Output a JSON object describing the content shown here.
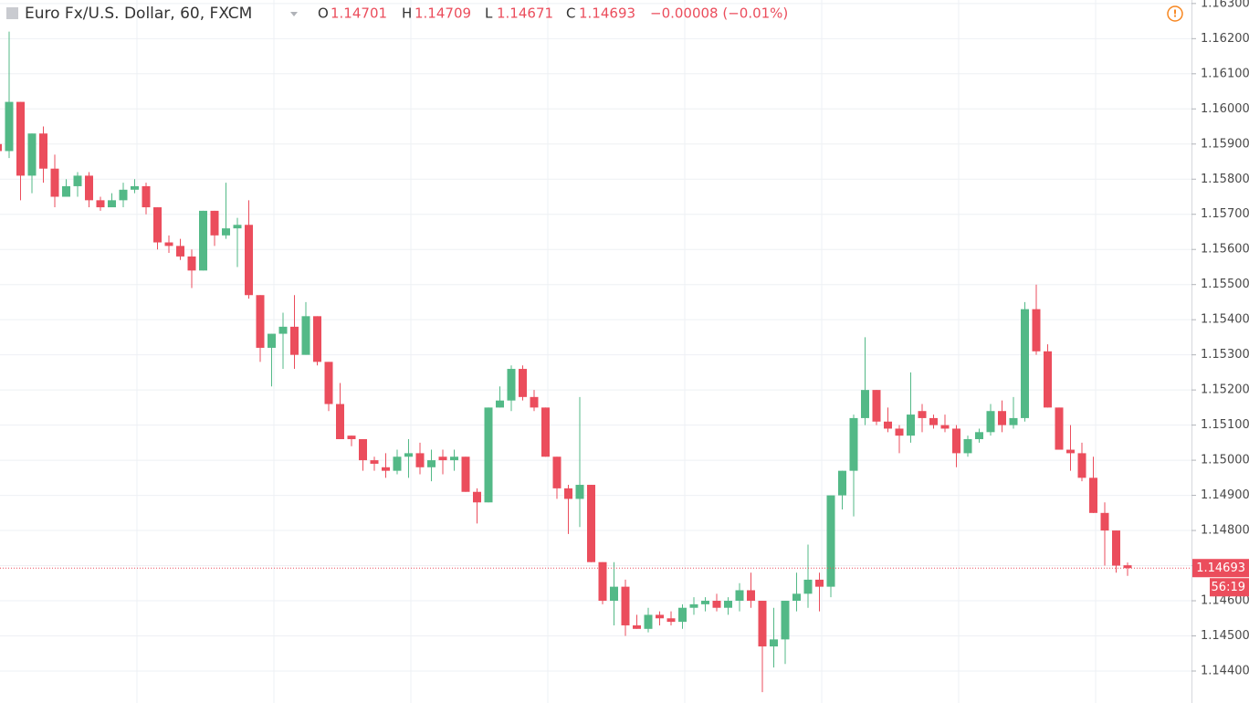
{
  "chart_data": {
    "type": "candlestick",
    "title": "Euro Fx/U.S. Dollar, 60, FXCM",
    "ohlc_legend": [
      {
        "label": "O",
        "value": "1.14701"
      },
      {
        "label": "H",
        "value": "1.14709"
      },
      {
        "label": "L",
        "value": "1.14671"
      },
      {
        "label": "C",
        "value": "1.14693"
      }
    ],
    "change": "−0.00008 (−0.01%)",
    "up_color": "#53b987",
    "down_color": "#eb4d5c",
    "ylim": [
      1.14309,
      1.1631
    ],
    "yticks": [
      {
        "value": 1.163,
        "label": "1.16300"
      },
      {
        "value": 1.162,
        "label": "1.16200"
      },
      {
        "value": 1.161,
        "label": "1.16100"
      },
      {
        "value": 1.16,
        "label": "1.16000"
      },
      {
        "value": 1.159,
        "label": "1.15900"
      },
      {
        "value": 1.158,
        "label": "1.15800"
      },
      {
        "value": 1.157,
        "label": "1.15700"
      },
      {
        "value": 1.156,
        "label": "1.15600"
      },
      {
        "value": 1.155,
        "label": "1.15500"
      },
      {
        "value": 1.154,
        "label": "1.15400"
      },
      {
        "value": 1.153,
        "label": "1.15300"
      },
      {
        "value": 1.152,
        "label": "1.15200"
      },
      {
        "value": 1.151,
        "label": "1.15100"
      },
      {
        "value": 1.15,
        "label": "1.15000"
      },
      {
        "value": 1.149,
        "label": "1.14900"
      },
      {
        "value": 1.148,
        "label": "1.14800"
      },
      {
        "value": 1.147,
        "label": "1.14700"
      },
      {
        "value": 1.146,
        "label": "1.14600"
      },
      {
        "value": 1.145,
        "label": "1.14500"
      },
      {
        "value": 1.144,
        "label": "1.14400"
      }
    ],
    "grid": true,
    "last_price": {
      "value": 1.14693,
      "label": "1.14693"
    },
    "countdown": "56:19",
    "open": [
      1.159,
      1.1588,
      1.1602,
      1.1581,
      1.1593,
      1.1583,
      1.1575,
      1.1578,
      1.1581,
      1.1574,
      1.1572,
      1.1574,
      1.1577,
      1.1578,
      1.1572,
      1.1562,
      1.1561,
      1.1558,
      1.1554,
      1.1571,
      1.1564,
      1.1566,
      1.1567,
      1.1547,
      1.1532,
      1.1536,
      1.1538,
      1.153,
      1.1541,
      1.1528,
      1.1516,
      1.1507,
      1.1506,
      1.15,
      1.1498,
      1.1497,
      1.1501,
      1.1502,
      1.1498,
      1.1501,
      1.15,
      1.1501,
      1.1491,
      1.1488,
      1.1515,
      1.1517,
      1.1526,
      1.1518,
      1.1515,
      1.1501,
      1.1492,
      1.1489,
      1.1493,
      1.1471,
      1.146,
      1.1464,
      1.1453,
      1.1452,
      1.1456,
      1.1455,
      1.1454,
      1.1458,
      1.1459,
      1.146,
      1.1458,
      1.146,
      1.1463,
      1.146,
      1.1447,
      1.1449,
      1.146,
      1.1462,
      1.1466,
      1.1464,
      1.149,
      1.1497,
      1.1512,
      1.152,
      1.1511,
      1.1509,
      1.1507,
      1.1514,
      1.1512,
      1.151,
      1.1509,
      1.1502,
      1.1506,
      1.1508,
      1.1514,
      1.151,
      1.1512,
      1.1543,
      1.1531,
      1.1515,
      1.1503,
      1.1502,
      1.1495,
      1.1485,
      1.148,
      1.14701
    ],
    "high": [
      1.1591,
      1.1622,
      1.1602,
      1.1593,
      1.1595,
      1.1587,
      1.158,
      1.1582,
      1.1582,
      1.1575,
      1.1576,
      1.1579,
      1.158,
      1.1579,
      1.1572,
      1.1564,
      1.1563,
      1.156,
      1.1571,
      1.1571,
      1.1579,
      1.1569,
      1.1574,
      1.1547,
      1.1536,
      1.1542,
      1.1547,
      1.1545,
      1.1541,
      1.1528,
      1.1522,
      1.1507,
      1.1506,
      1.1501,
      1.1502,
      1.1503,
      1.1506,
      1.1505,
      1.1503,
      1.1503,
      1.1503,
      1.1501,
      1.1492,
      1.1515,
      1.1521,
      1.1527,
      1.1527,
      1.152,
      1.1515,
      1.1501,
      1.1493,
      1.1518,
      1.1493,
      1.1471,
      1.1471,
      1.1466,
      1.1456,
      1.1458,
      1.1457,
      1.1457,
      1.1459,
      1.1461,
      1.1461,
      1.1462,
      1.1461,
      1.1465,
      1.1468,
      1.146,
      1.1458,
      1.146,
      1.1468,
      1.1476,
      1.1468,
      1.149,
      1.1497,
      1.1513,
      1.1535,
      1.152,
      1.1515,
      1.151,
      1.1525,
      1.1516,
      1.1513,
      1.1513,
      1.151,
      1.1507,
      1.1509,
      1.1516,
      1.1517,
      1.1518,
      1.1545,
      1.155,
      1.1533,
      1.1515,
      1.151,
      1.1505,
      1.1501,
      1.1488,
      1.148,
      1.14709
    ],
    "low": [
      1.1586,
      1.1586,
      1.1574,
      1.1576,
      1.1579,
      1.1572,
      1.1575,
      1.1575,
      1.1572,
      1.1571,
      1.1572,
      1.1572,
      1.1576,
      1.157,
      1.156,
      1.1559,
      1.1557,
      1.1549,
      1.1554,
      1.1561,
      1.1563,
      1.1555,
      1.1546,
      1.1528,
      1.1521,
      1.1526,
      1.1526,
      1.153,
      1.1527,
      1.1514,
      1.1506,
      1.1504,
      1.1497,
      1.1497,
      1.1495,
      1.1496,
      1.1495,
      1.1496,
      1.1494,
      1.1496,
      1.1497,
      1.1491,
      1.1482,
      1.1488,
      1.1515,
      1.1514,
      1.1517,
      1.1514,
      1.1501,
      1.1489,
      1.1479,
      1.1481,
      1.1471,
      1.1459,
      1.1453,
      1.145,
      1.1452,
      1.1451,
      1.1453,
      1.1453,
      1.1452,
      1.1456,
      1.1457,
      1.1457,
      1.1456,
      1.1457,
      1.1458,
      1.1434,
      1.1441,
      1.1442,
      1.1457,
      1.1458,
      1.1457,
      1.1461,
      1.1486,
      1.1484,
      1.151,
      1.151,
      1.1508,
      1.1502,
      1.1505,
      1.1508,
      1.1509,
      1.1508,
      1.1498,
      1.1501,
      1.1505,
      1.1507,
      1.1508,
      1.1509,
      1.1511,
      1.153,
      1.1515,
      1.1503,
      1.1497,
      1.1494,
      1.1485,
      1.147,
      1.1468,
      1.14671
    ],
    "close": [
      1.1588,
      1.1602,
      1.1581,
      1.1593,
      1.1583,
      1.1575,
      1.1578,
      1.1581,
      1.1574,
      1.1572,
      1.1574,
      1.1577,
      1.1578,
      1.1572,
      1.1562,
      1.1561,
      1.1558,
      1.1554,
      1.1571,
      1.1564,
      1.1566,
      1.1567,
      1.1547,
      1.1532,
      1.1536,
      1.1538,
      1.153,
      1.1541,
      1.1528,
      1.1516,
      1.1506,
      1.1506,
      1.15,
      1.1499,
      1.1497,
      1.1501,
      1.1502,
      1.1498,
      1.15,
      1.15,
      1.1501,
      1.1491,
      1.1488,
      1.1515,
      1.1517,
      1.1526,
      1.1518,
      1.1515,
      1.1501,
      1.1492,
      1.1489,
      1.1493,
      1.1471,
      1.146,
      1.1464,
      1.1453,
      1.1452,
      1.1456,
      1.1455,
      1.1454,
      1.1458,
      1.1459,
      1.146,
      1.1458,
      1.146,
      1.1463,
      1.146,
      1.1447,
      1.1449,
      1.146,
      1.1462,
      1.1466,
      1.1464,
      1.149,
      1.1497,
      1.1512,
      1.152,
      1.1511,
      1.1509,
      1.1507,
      1.1513,
      1.1512,
      1.151,
      1.1509,
      1.1502,
      1.1506,
      1.1508,
      1.1514,
      1.151,
      1.1512,
      1.1543,
      1.1531,
      1.1515,
      1.1503,
      1.1502,
      1.1495,
      1.1485,
      1.148,
      1.147,
      1.14693
    ]
  }
}
